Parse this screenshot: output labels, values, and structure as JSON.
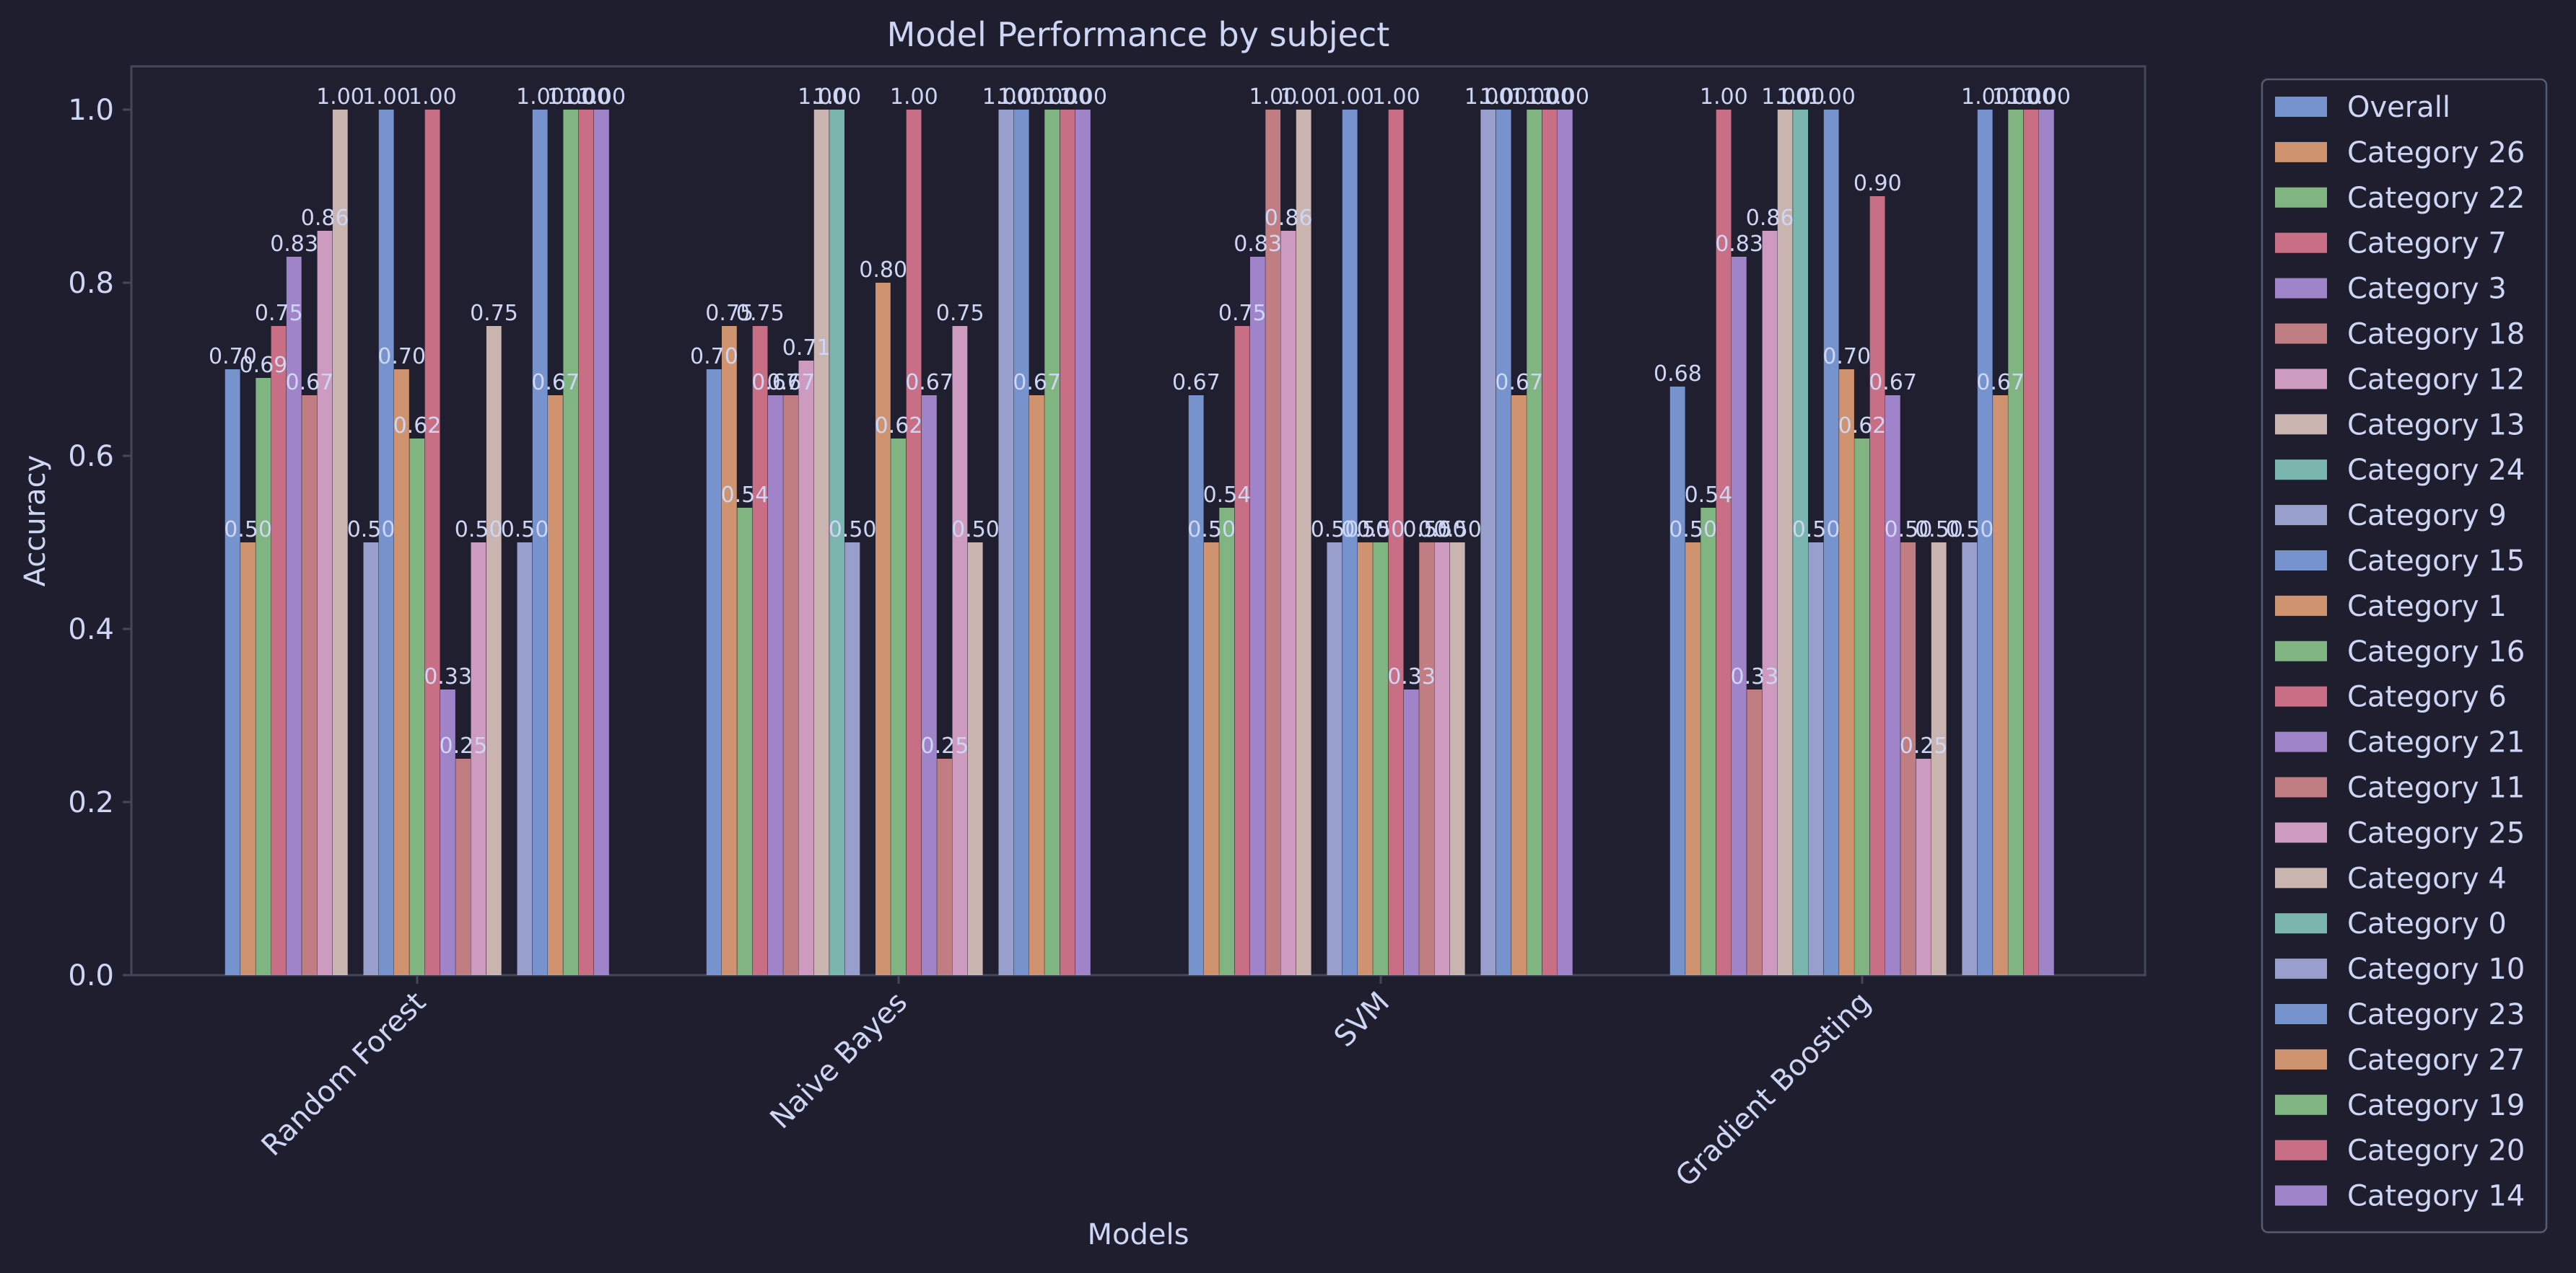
{
  "chart_data": {
    "type": "bar",
    "title": "Model Performance by subject",
    "xlabel": "Models",
    "ylabel": "Accuracy",
    "ylim": [
      0,
      1.05
    ],
    "yticks": [
      "0.0",
      "0.2",
      "0.4",
      "0.6",
      "0.8",
      "1.0"
    ],
    "categories": [
      "Random Forest",
      "Naive Bayes",
      "SVM",
      "Gradient Boosting"
    ],
    "grid": false,
    "legend_position": "outside-right",
    "series": [
      {
        "name": "Overall",
        "color": "#7b9ad6",
        "values": [
          0.7,
          0.7,
          0.67,
          0.68
        ]
      },
      {
        "name": "Category 26",
        "color": "#d99a73",
        "values": [
          0.5,
          0.75,
          0.5,
          0.5
        ]
      },
      {
        "name": "Category 22",
        "color": "#86bd86",
        "values": [
          0.69,
          0.54,
          0.54,
          0.54
        ]
      },
      {
        "name": "Category 7",
        "color": "#d2738a",
        "values": [
          0.75,
          0.75,
          0.75,
          1.0
        ]
      },
      {
        "name": "Category 3",
        "color": "#a88ad2",
        "values": [
          0.83,
          0.67,
          0.83,
          0.83
        ]
      },
      {
        "name": "Category 18",
        "color": "#c98488",
        "values": [
          0.67,
          0.67,
          1.0,
          0.33
        ]
      },
      {
        "name": "Category 12",
        "color": "#d8a2c8",
        "values": [
          0.86,
          0.71,
          0.86,
          0.86
        ]
      },
      {
        "name": "Category 13",
        "color": "#d4bdb6",
        "values": [
          1.0,
          1.0,
          1.0,
          1.0
        ]
      },
      {
        "name": "Category 24",
        "color": "#7fbfb4",
        "values": [
          null,
          1.0,
          null,
          1.0
        ]
      },
      {
        "name": "Category 9",
        "color": "#a0a6d6",
        "values": [
          0.5,
          0.5,
          0.5,
          0.5
        ]
      },
      {
        "name": "Category 15",
        "color": "#7b9ad6",
        "values": [
          1.0,
          null,
          1.0,
          1.0
        ]
      },
      {
        "name": "Category 1",
        "color": "#d99a73",
        "values": [
          0.7,
          0.8,
          0.5,
          0.7
        ]
      },
      {
        "name": "Category 16",
        "color": "#86bd86",
        "values": [
          0.62,
          0.62,
          0.5,
          0.62
        ]
      },
      {
        "name": "Category 6",
        "color": "#d2738a",
        "values": [
          1.0,
          1.0,
          1.0,
          0.9
        ]
      },
      {
        "name": "Category 21",
        "color": "#a88ad2",
        "values": [
          0.33,
          0.67,
          0.33,
          0.67
        ]
      },
      {
        "name": "Category 11",
        "color": "#c98488",
        "values": [
          0.25,
          0.25,
          0.5,
          0.5
        ]
      },
      {
        "name": "Category 25",
        "color": "#d8a2c8",
        "values": [
          0.5,
          0.75,
          0.5,
          0.25
        ]
      },
      {
        "name": "Category 4",
        "color": "#d4bdb6",
        "values": [
          0.75,
          0.5,
          0.5,
          0.5
        ]
      },
      {
        "name": "Category 0",
        "color": "#7fbfb4",
        "values": [
          null,
          null,
          null,
          null
        ]
      },
      {
        "name": "Category 10",
        "color": "#a0a6d6",
        "values": [
          0.5,
          1.0,
          1.0,
          0.5
        ]
      },
      {
        "name": "Category 23",
        "color": "#7b9ad6",
        "values": [
          1.0,
          1.0,
          1.0,
          1.0
        ]
      },
      {
        "name": "Category 27",
        "color": "#d99a73",
        "values": [
          0.67,
          0.67,
          0.67,
          0.67
        ]
      },
      {
        "name": "Category 19",
        "color": "#86bd86",
        "values": [
          1.0,
          1.0,
          1.0,
          1.0
        ]
      },
      {
        "name": "Category 20",
        "color": "#d2738a",
        "values": [
          1.0,
          1.0,
          1.0,
          1.0
        ]
      },
      {
        "name": "Category 14",
        "color": "#a88ad2",
        "values": [
          1.0,
          1.0,
          1.0,
          1.0
        ]
      }
    ]
  },
  "theme": {
    "background": "#1e1e2e",
    "axes_background": "#1f1f30",
    "spine": "#44475a",
    "text": "#cdd6f4"
  }
}
